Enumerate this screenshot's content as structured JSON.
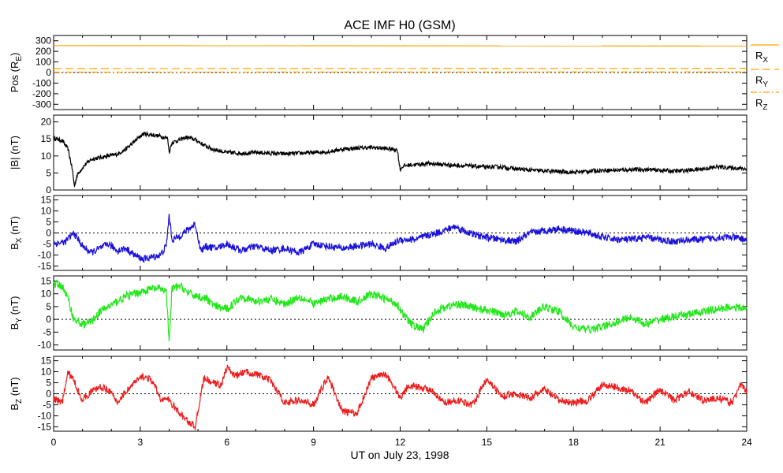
{
  "chart_data": {
    "type": "line",
    "title": "ACE IMF H0 (GSM)",
    "xlabel": "UT on July 23, 1998",
    "xlim": [
      0,
      24
    ],
    "x_ticks": [
      0,
      3,
      6,
      9,
      12,
      15,
      18,
      21,
      24
    ],
    "x_tick_labels": [
      "0",
      "3",
      "6",
      "9",
      "12",
      "15",
      "18",
      "21",
      "24"
    ],
    "panels": [
      {
        "id": "pos",
        "ylabel": "Pos (RE)",
        "ylabel_parts": {
          "main": "Pos (R",
          "sub": "E",
          "tail": ")"
        },
        "ylim": [
          -350,
          350
        ],
        "yticks": [
          300,
          200,
          100,
          0,
          -100,
          -200,
          -300
        ],
        "ytick_labels": [
          "300",
          "200",
          "100",
          "0",
          "-100",
          "-200",
          "-300"
        ],
        "zero_line": true,
        "series": [
          {
            "name": "RX",
            "name_main": "R",
            "name_sub": "X",
            "color": "#ffa500",
            "dash": "solid",
            "x": [
              0,
              24
            ],
            "y": [
              255,
              250
            ]
          },
          {
            "name": "RY",
            "name_main": "R",
            "name_sub": "Y",
            "color": "#ffa500",
            "dash": "long",
            "x": [
              0,
              24
            ],
            "y": [
              37,
              40
            ]
          },
          {
            "name": "RZ",
            "name_main": "R",
            "name_sub": "Z",
            "color": "#ffa500",
            "dash": "dashdot",
            "x": [
              0,
              24
            ],
            "y": [
              4,
              6
            ]
          }
        ]
      },
      {
        "id": "btotal",
        "ylabel": "|B| (nT)",
        "ylim": [
          0,
          22
        ],
        "yticks": [
          20,
          15,
          10,
          5,
          0
        ],
        "ytick_labels": [
          "20",
          "15",
          "10",
          "5",
          "0"
        ],
        "zero_line": false,
        "series": [
          {
            "name": "|B|",
            "color": "#000000",
            "x": [
              0,
              0.3,
              0.5,
              0.65,
              0.72,
              0.8,
              0.9,
              1.1,
              1.3,
              1.6,
              1.9,
              2.2,
              2.5,
              2.7,
              2.9,
              3.1,
              3.4,
              3.7,
              3.95,
              4.0,
              4.1,
              4.3,
              4.6,
              4.9,
              5.2,
              5.5,
              6.0,
              6.5,
              7.0,
              7.5,
              8.0,
              8.5,
              9.0,
              9.5,
              10.0,
              10.5,
              11.0,
              11.5,
              11.9,
              12.0,
              12.1,
              12.3,
              12.6,
              13.0,
              13.5,
              14.0,
              14.5,
              14.9,
              15.0,
              15.1,
              15.5,
              16.0,
              16.5,
              17.0,
              17.5,
              18.0,
              18.5,
              19.0,
              19.5,
              20.0,
              20.5,
              21.0,
              21.5,
              22.0,
              22.5,
              23.0,
              23.5,
              24.0
            ],
            "y": [
              15.2,
              14.5,
              12.0,
              6.0,
              1.0,
              4.0,
              5.5,
              7.5,
              9.0,
              9.5,
              10.0,
              10.5,
              12.0,
              13.5,
              15.0,
              16.5,
              16.2,
              15.8,
              15.2,
              11.0,
              14.0,
              14.5,
              15.5,
              14.8,
              13.2,
              12.0,
              11.0,
              10.8,
              11.0,
              10.8,
              10.6,
              10.8,
              11.0,
              11.2,
              12.0,
              12.3,
              12.5,
              12.2,
              11.8,
              6.0,
              7.0,
              7.3,
              7.5,
              7.8,
              7.5,
              7.2,
              7.0,
              6.8,
              6.5,
              6.8,
              6.8,
              6.2,
              5.8,
              5.6,
              5.4,
              5.2,
              5.5,
              5.8,
              5.8,
              6.0,
              6.0,
              5.8,
              5.5,
              5.8,
              6.2,
              6.8,
              6.5,
              6.2
            ]
          }
        ]
      },
      {
        "id": "bx",
        "ylabel": "BX (nT)",
        "ylabel_parts": {
          "main": "B",
          "sub": "X",
          "tail": " (nT)"
        },
        "ylim": [
          -17,
          17
        ],
        "yticks": [
          15,
          10,
          5,
          0,
          -5,
          -10,
          -15
        ],
        "ytick_labels": [
          "15",
          "10",
          "5",
          "0",
          "-5",
          "-10",
          "-15"
        ],
        "zero_line": true,
        "series": [
          {
            "name": "BX",
            "color": "#1a10dc",
            "x": [
              0,
              0.4,
              0.7,
              1.0,
              1.3,
              1.6,
              1.9,
              2.2,
              2.5,
              2.8,
              3.1,
              3.4,
              3.7,
              3.9,
              4.0,
              4.1,
              4.3,
              4.6,
              4.9,
              5.1,
              5.3,
              5.6,
              6.0,
              6.5,
              7.0,
              7.5,
              8.0,
              8.5,
              9.0,
              9.5,
              10.0,
              10.5,
              11.0,
              11.5,
              12.0,
              12.5,
              13.0,
              13.5,
              13.9,
              14.2,
              14.6,
              15.0,
              15.5,
              16.0,
              16.5,
              17.0,
              17.5,
              18.0,
              18.5,
              19.0,
              19.5,
              20.0,
              20.5,
              21.0,
              21.5,
              22.0,
              22.5,
              23.0,
              23.5,
              24.0
            ],
            "y": [
              -5,
              -4,
              0,
              -6,
              -9,
              -7,
              -5,
              -8,
              -7,
              -10,
              -12,
              -11,
              -10,
              -6,
              8,
              -3,
              -2,
              1,
              4,
              -8,
              -6,
              -7,
              -5,
              -8,
              -6,
              -8,
              -7,
              -9,
              -5,
              -6,
              -7,
              -6,
              -5,
              -7,
              -3,
              -3,
              -1,
              1,
              3,
              1,
              -1,
              -2,
              -3,
              -4,
              0,
              1,
              2,
              1,
              0,
              -2,
              -3,
              -3,
              -2,
              -3,
              -4,
              -3,
              -3,
              -2,
              -2,
              -3
            ]
          }
        ]
      },
      {
        "id": "by",
        "ylabel": "BY (nT)",
        "ylabel_parts": {
          "main": "B",
          "sub": "Y",
          "tail": " (nT)"
        },
        "ylim": [
          -12,
          17
        ],
        "yticks": [
          15,
          10,
          5,
          0,
          -5,
          -10
        ],
        "ytick_labels": [
          "15",
          "10",
          "5",
          "0",
          "-5",
          "-10"
        ],
        "zero_line": true,
        "series": [
          {
            "name": "BY",
            "color": "#22e81a",
            "x": [
              0,
              0.3,
              0.5,
              0.7,
              1.0,
              1.3,
              1.6,
              1.9,
              2.2,
              2.5,
              2.8,
              3.1,
              3.4,
              3.7,
              3.9,
              4.0,
              4.1,
              4.4,
              4.7,
              5.0,
              5.3,
              5.6,
              6.0,
              6.5,
              7.0,
              7.5,
              8.0,
              8.5,
              9.0,
              9.5,
              10.0,
              10.5,
              11.0,
              11.5,
              11.9,
              12.1,
              12.4,
              12.8,
              13.2,
              13.6,
              14.0,
              14.4,
              14.8,
              15.2,
              15.6,
              16.0,
              16.5,
              17.0,
              17.5,
              18.0,
              18.5,
              19.0,
              19.5,
              20.0,
              20.5,
              21.0,
              21.5,
              22.0,
              22.5,
              23.0,
              23.5,
              24.0
            ],
            "y": [
              14,
              13,
              8,
              0,
              -2,
              -1,
              3,
              5,
              7,
              9,
              10,
              11,
              12,
              12,
              11,
              -9,
              12,
              13,
              10,
              9,
              8,
              5,
              4,
              9,
              7,
              8,
              6,
              9,
              6,
              8,
              9,
              7,
              10,
              8,
              6,
              2,
              -2,
              -4,
              3,
              5,
              6,
              5,
              4,
              3,
              2,
              3,
              1,
              5,
              3,
              -3,
              -4,
              -3,
              -1,
              1,
              -2,
              0,
              1,
              2,
              3,
              4,
              5,
              4
            ]
          }
        ]
      },
      {
        "id": "bz",
        "ylabel": "BZ (nT)",
        "ylabel_parts": {
          "main": "B",
          "sub": "Z",
          "tail": " (nT)"
        },
        "ylim": [
          -17,
          17
        ],
        "yticks": [
          15,
          10,
          5,
          0,
          -5,
          -10,
          -15
        ],
        "ytick_labels": [
          "15",
          "10",
          "5",
          "0",
          "-5",
          "-10",
          "-15"
        ],
        "zero_line": true,
        "series": [
          {
            "name": "BZ",
            "color": "#ee1c1c",
            "x": [
              0,
              0.3,
              0.5,
              0.7,
              1.0,
              1.3,
              1.6,
              1.9,
              2.2,
              2.5,
              2.8,
              3.1,
              3.4,
              3.7,
              4.0,
              4.3,
              4.6,
              4.9,
              5.2,
              5.5,
              5.8,
              6.0,
              6.3,
              6.6,
              7.0,
              7.5,
              8.0,
              8.5,
              9.0,
              9.5,
              10.0,
              10.5,
              11.0,
              11.5,
              11.8,
              12.0,
              12.3,
              12.6,
              13.0,
              13.5,
              14.0,
              14.5,
              15.0,
              15.5,
              16.0,
              16.5,
              17.0,
              17.5,
              18.0,
              18.5,
              19.0,
              19.5,
              20.0,
              20.5,
              21.0,
              21.5,
              22.0,
              22.5,
              23.0,
              23.5,
              23.8,
              24.0
            ],
            "y": [
              -2,
              -4,
              10,
              6,
              -3,
              1,
              3,
              2,
              -4,
              1,
              5,
              8,
              6,
              -2,
              -3,
              -8,
              -12,
              -15,
              7,
              5,
              4,
              12,
              8,
              10,
              9,
              6,
              -4,
              -3,
              -5,
              8,
              -8,
              -9,
              7,
              9,
              3,
              -2,
              4,
              3,
              2,
              -4,
              -3,
              -5,
              7,
              -1,
              0,
              -2,
              2,
              -3,
              -4,
              -3,
              4,
              3,
              1,
              -4,
              2,
              -3,
              1,
              -3,
              -2,
              -4,
              4,
              1
            ]
          }
        ]
      }
    ]
  }
}
